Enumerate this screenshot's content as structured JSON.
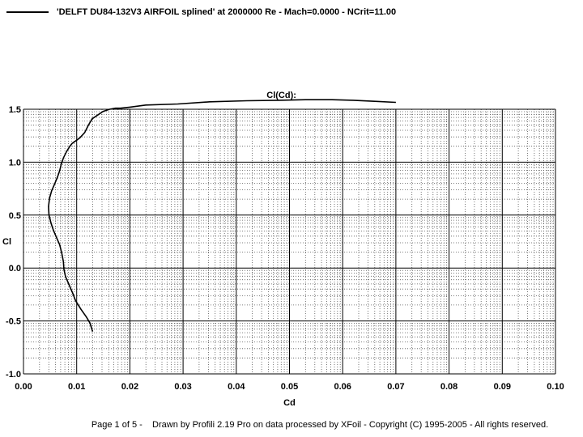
{
  "chart_data": {
    "type": "line",
    "title": "",
    "curve_label": "Cl(Cd):",
    "xlabel": "Cd",
    "ylabel": "Cl",
    "xlim": [
      0.0,
      0.1
    ],
    "ylim": [
      -1.0,
      1.5
    ],
    "x_ticks": [
      "0.00",
      "0.01",
      "0.02",
      "0.03",
      "0.04",
      "0.05",
      "0.06",
      "0.07",
      "0.08",
      "0.09",
      "0.10"
    ],
    "y_ticks": [
      "-1.0",
      "-0.5",
      "0.0",
      "0.5",
      "1.0",
      "1.5"
    ],
    "grid": true,
    "legend_position": "top-left",
    "series": [
      {
        "name": "'DELFT DU84-132V3 AIRFOIL splined' at 2000000 Re - Mach=0.0000 - NCrit=11.00",
        "color": "#000000",
        "x": [
          0.013,
          0.0125,
          0.0118,
          0.0108,
          0.0098,
          0.0092,
          0.0085,
          0.0079,
          0.0076,
          0.0075,
          0.0072,
          0.0068,
          0.0062,
          0.0056,
          0.0052,
          0.0048,
          0.0047,
          0.0049,
          0.0053,
          0.0059,
          0.0064,
          0.0068,
          0.0071,
          0.0075,
          0.0081,
          0.0087,
          0.0092,
          0.0098,
          0.0106,
          0.0115,
          0.0122,
          0.0129,
          0.0138,
          0.015,
          0.0162,
          0.0173,
          0.0182,
          0.02,
          0.023,
          0.029,
          0.035,
          0.042,
          0.048,
          0.053,
          0.058,
          0.062,
          0.066,
          0.07
        ],
        "y": [
          -0.6,
          -0.52,
          -0.46,
          -0.39,
          -0.31,
          -0.23,
          -0.15,
          -0.08,
          -0.01,
          0.06,
          0.14,
          0.22,
          0.29,
          0.36,
          0.42,
          0.5,
          0.58,
          0.66,
          0.73,
          0.8,
          0.86,
          0.92,
          0.98,
          1.04,
          1.1,
          1.15,
          1.18,
          1.2,
          1.23,
          1.28,
          1.35,
          1.41,
          1.44,
          1.48,
          1.5,
          1.51,
          1.51,
          1.52,
          1.54,
          1.55,
          1.57,
          1.58,
          1.585,
          1.59,
          1.59,
          1.585,
          1.575,
          1.565
        ]
      }
    ]
  },
  "footer": {
    "page": "Page 1 of 5   -",
    "credit": "Drawn by Profili 2.19 Pro on data processed by  XFoil - Copyright (C) 1995-2005 - All rights reserved."
  }
}
